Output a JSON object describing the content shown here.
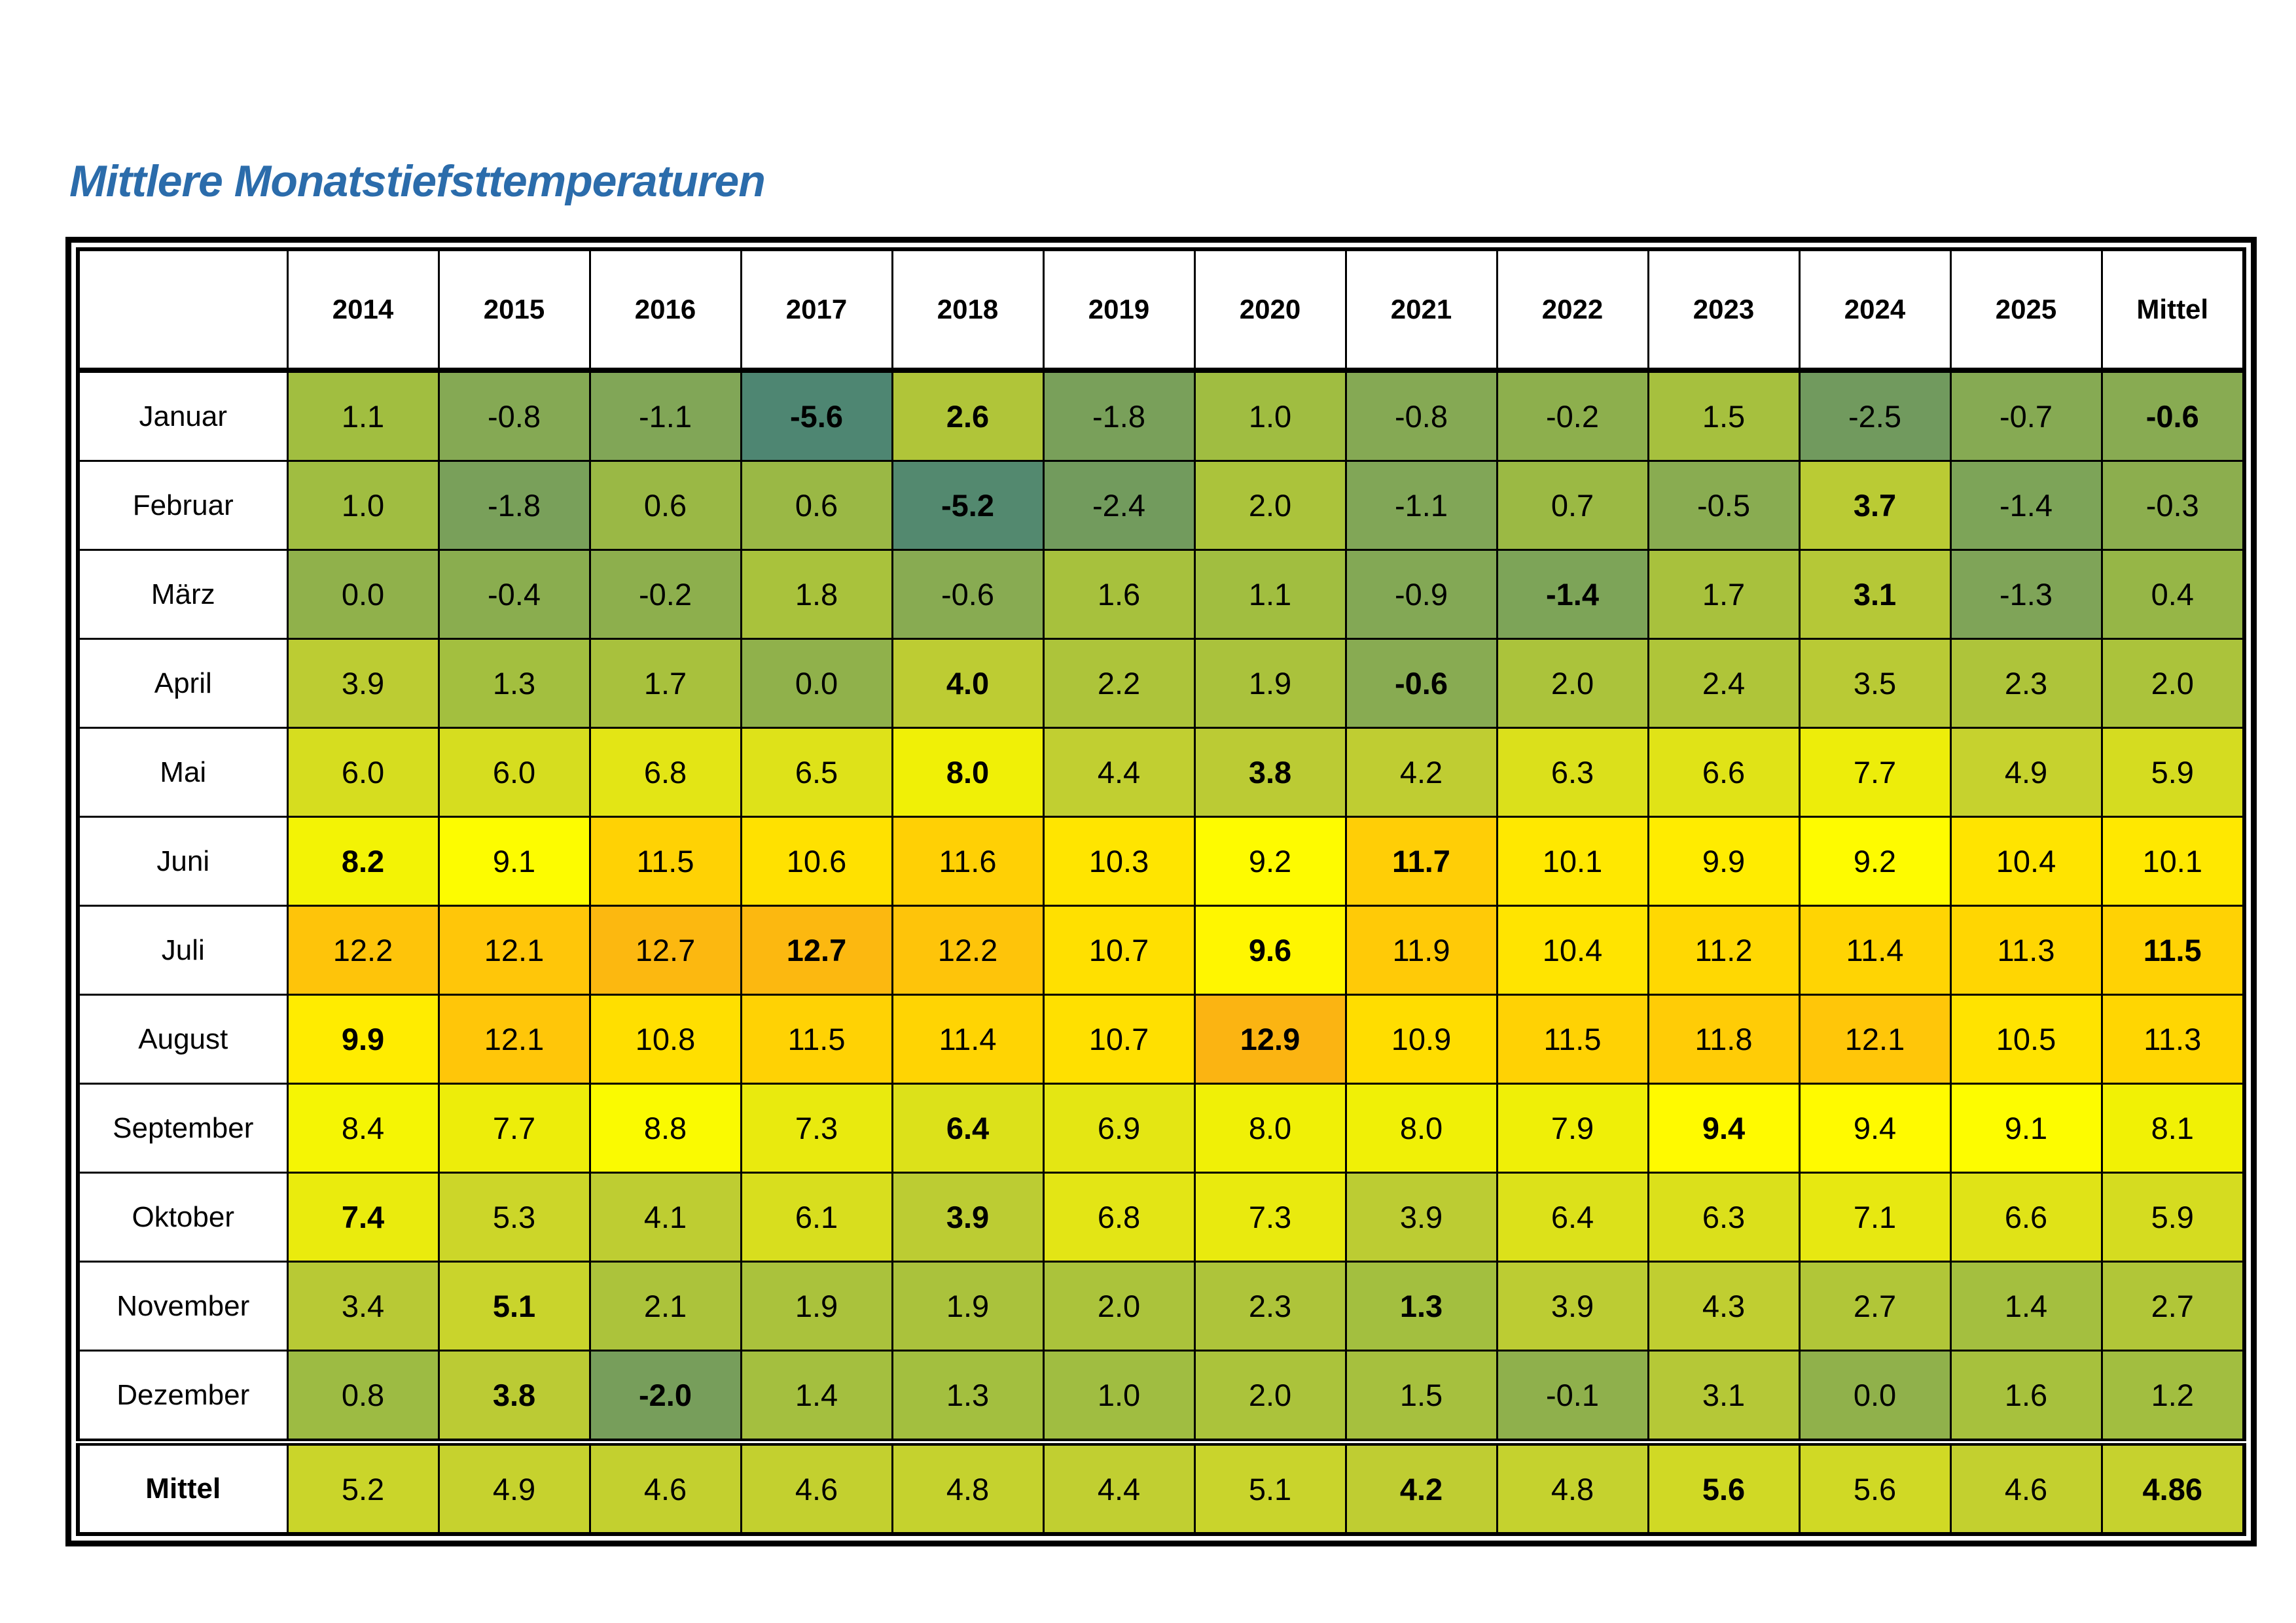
{
  "title": {
    "text": "Mittlere Monatstiefsttemperaturen",
    "color": "#2b6cab"
  },
  "table": {
    "corner": "",
    "years": [
      "2014",
      "2015",
      "2016",
      "2017",
      "2018",
      "2019",
      "2020",
      "2021",
      "2022",
      "2023",
      "2024",
      "2025"
    ],
    "mittel_header": "Mittel",
    "months": [
      {
        "label": "Januar",
        "values": [
          "1.1",
          "-0.8",
          "-1.1",
          "-5.6",
          "2.6",
          "-1.8",
          "1.0",
          "-0.8",
          "-0.2",
          "1.5",
          "-2.5",
          "-0.7"
        ],
        "bold": [
          3,
          4
        ],
        "mittel": "-0.6",
        "mittel_bold": true
      },
      {
        "label": "Februar",
        "values": [
          "1.0",
          "-1.8",
          "0.6",
          "0.6",
          "-5.2",
          "-2.4",
          "2.0",
          "-1.1",
          "0.7",
          "-0.5",
          "3.7",
          "-1.4"
        ],
        "bold": [
          4,
          10
        ],
        "mittel": "-0.3",
        "mittel_bold": false
      },
      {
        "label": "März",
        "values": [
          "0.0",
          "-0.4",
          "-0.2",
          "1.8",
          "-0.6",
          "1.6",
          "1.1",
          "-0.9",
          "-1.4",
          "1.7",
          "3.1",
          "-1.3"
        ],
        "bold": [
          8,
          10
        ],
        "mittel": "0.4",
        "mittel_bold": false
      },
      {
        "label": "April",
        "values": [
          "3.9",
          "1.3",
          "1.7",
          "0.0",
          "4.0",
          "2.2",
          "1.9",
          "-0.6",
          "2.0",
          "2.4",
          "3.5",
          "2.3"
        ],
        "bold": [
          4,
          7
        ],
        "mittel": "2.0",
        "mittel_bold": false
      },
      {
        "label": "Mai",
        "values": [
          "6.0",
          "6.0",
          "6.8",
          "6.5",
          "8.0",
          "4.4",
          "3.8",
          "4.2",
          "6.3",
          "6.6",
          "7.7",
          "4.9"
        ],
        "bold": [
          4,
          6
        ],
        "mittel": "5.9",
        "mittel_bold": false
      },
      {
        "label": "Juni",
        "values": [
          "8.2",
          "9.1",
          "11.5",
          "10.6",
          "11.6",
          "10.3",
          "9.2",
          "11.7",
          "10.1",
          "9.9",
          "9.2",
          "10.4"
        ],
        "bold": [
          0,
          7
        ],
        "mittel": "10.1",
        "mittel_bold": false
      },
      {
        "label": "Juli",
        "values": [
          "12.2",
          "12.1",
          "12.7",
          "12.7",
          "12.2",
          "10.7",
          "9.6",
          "11.9",
          "10.4",
          "11.2",
          "11.4",
          "11.3"
        ],
        "bold": [
          3,
          6
        ],
        "mittel": "11.5",
        "mittel_bold": true
      },
      {
        "label": "August",
        "values": [
          "9.9",
          "12.1",
          "10.8",
          "11.5",
          "11.4",
          "10.7",
          "12.9",
          "10.9",
          "11.5",
          "11.8",
          "12.1",
          "10.5"
        ],
        "bold": [
          0,
          6
        ],
        "mittel": "11.3",
        "mittel_bold": false
      },
      {
        "label": "September",
        "values": [
          "8.4",
          "7.7",
          "8.8",
          "7.3",
          "6.4",
          "6.9",
          "8.0",
          "8.0",
          "7.9",
          "9.4",
          "9.4",
          "9.1"
        ],
        "bold": [
          4,
          9
        ],
        "mittel": "8.1",
        "mittel_bold": false
      },
      {
        "label": "Oktober",
        "values": [
          "7.4",
          "5.3",
          "4.1",
          "6.1",
          "3.9",
          "6.8",
          "7.3",
          "3.9",
          "6.4",
          "6.3",
          "7.1",
          "6.6"
        ],
        "bold": [
          0,
          4
        ],
        "mittel": "5.9",
        "mittel_bold": false
      },
      {
        "label": "November",
        "values": [
          "3.4",
          "5.1",
          "2.1",
          "1.9",
          "1.9",
          "2.0",
          "2.3",
          "1.3",
          "3.9",
          "4.3",
          "2.7",
          "1.4"
        ],
        "bold": [
          1,
          7
        ],
        "mittel": "2.7",
        "mittel_bold": false
      },
      {
        "label": "Dezember",
        "values": [
          "0.8",
          "3.8",
          "-2.0",
          "1.4",
          "1.3",
          "1.0",
          "2.0",
          "1.5",
          "-0.1",
          "3.1",
          "0.0",
          "1.6"
        ],
        "bold": [
          1,
          2
        ],
        "mittel": "1.2",
        "mittel_bold": false
      }
    ],
    "summary": {
      "label": "Mittel",
      "values": [
        "5.2",
        "4.9",
        "4.6",
        "4.6",
        "4.8",
        "4.4",
        "5.1",
        "4.2",
        "4.8",
        "5.6",
        "5.6",
        "4.6"
      ],
      "bold": [
        7,
        9
      ],
      "mittel": "4.86",
      "mittel_bold": true
    }
  },
  "color_scale": {
    "stops": [
      [
        -5.6,
        "#4e8672"
      ],
      [
        -2.5,
        "#719a5e"
      ],
      [
        -1.0,
        "#82a756"
      ],
      [
        0,
        "#90b14b"
      ],
      [
        1,
        "#a0bd41"
      ],
      [
        2,
        "#abc33b"
      ],
      [
        3,
        "#b4c737"
      ],
      [
        4,
        "#bdcc33"
      ],
      [
        5,
        "#c7d32d"
      ],
      [
        6,
        "#d6dd1f"
      ],
      [
        7,
        "#e6e712"
      ],
      [
        8,
        "#f0f006"
      ],
      [
        9,
        "#fdfd00"
      ],
      [
        9.5,
        "#fff900"
      ],
      [
        10,
        "#ffe900"
      ],
      [
        11,
        "#ffdc00"
      ],
      [
        12,
        "#ffc808"
      ],
      [
        12.9,
        "#fbb412"
      ]
    ]
  },
  "chart_data": {
    "type": "heatmap",
    "title": "Mittlere Monatstiefsttemperaturen",
    "x": [
      "2014",
      "2015",
      "2016",
      "2017",
      "2018",
      "2019",
      "2020",
      "2021",
      "2022",
      "2023",
      "2024",
      "2025"
    ],
    "y": [
      "Januar",
      "Februar",
      "März",
      "April",
      "Mai",
      "Juni",
      "Juli",
      "August",
      "September",
      "Oktober",
      "November",
      "Dezember"
    ],
    "values": [
      [
        1.1,
        -0.8,
        -1.1,
        -5.6,
        2.6,
        -1.8,
        1.0,
        -0.8,
        -0.2,
        1.5,
        -2.5,
        -0.7
      ],
      [
        1.0,
        -1.8,
        0.6,
        0.6,
        -5.2,
        -2.4,
        2.0,
        -1.1,
        0.7,
        -0.5,
        3.7,
        -1.4
      ],
      [
        0.0,
        -0.4,
        -0.2,
        1.8,
        -0.6,
        1.6,
        1.1,
        -0.9,
        -1.4,
        1.7,
        3.1,
        -1.3
      ],
      [
        3.9,
        1.3,
        1.7,
        0.0,
        4.0,
        2.2,
        1.9,
        -0.6,
        2.0,
        2.4,
        3.5,
        2.3
      ],
      [
        6.0,
        6.0,
        6.8,
        6.5,
        8.0,
        4.4,
        3.8,
        4.2,
        6.3,
        6.6,
        7.7,
        4.9
      ],
      [
        8.2,
        9.1,
        11.5,
        10.6,
        11.6,
        10.3,
        9.2,
        11.7,
        10.1,
        9.9,
        9.2,
        10.4
      ],
      [
        12.2,
        12.1,
        12.7,
        12.7,
        12.2,
        10.7,
        9.6,
        11.9,
        10.4,
        11.2,
        11.4,
        11.3
      ],
      [
        9.9,
        12.1,
        10.8,
        11.5,
        11.4,
        10.7,
        12.9,
        10.9,
        11.5,
        11.8,
        12.1,
        10.5
      ],
      [
        8.4,
        7.7,
        8.8,
        7.3,
        6.4,
        6.9,
        8.0,
        8.0,
        7.9,
        9.4,
        9.4,
        9.1
      ],
      [
        7.4,
        5.3,
        4.1,
        6.1,
        3.9,
        6.8,
        7.3,
        3.9,
        6.4,
        6.3,
        7.1,
        6.6
      ],
      [
        3.4,
        5.1,
        2.1,
        1.9,
        1.9,
        2.0,
        2.3,
        1.3,
        3.9,
        4.3,
        2.7,
        1.4
      ],
      [
        0.8,
        3.8,
        -2.0,
        1.4,
        1.3,
        1.0,
        2.0,
        1.5,
        -0.1,
        3.1,
        0.0,
        1.6
      ]
    ],
    "row_means": [
      -0.6,
      -0.3,
      0.4,
      2.0,
      5.9,
      10.1,
      11.5,
      11.3,
      8.1,
      5.9,
      2.7,
      1.2
    ],
    "col_means": [
      5.2,
      4.9,
      4.6,
      4.6,
      4.8,
      4.4,
      5.1,
      4.2,
      4.8,
      5.6,
      5.6,
      4.6
    ],
    "overall_mean": 4.86,
    "legend_position": "none",
    "grid": true
  }
}
